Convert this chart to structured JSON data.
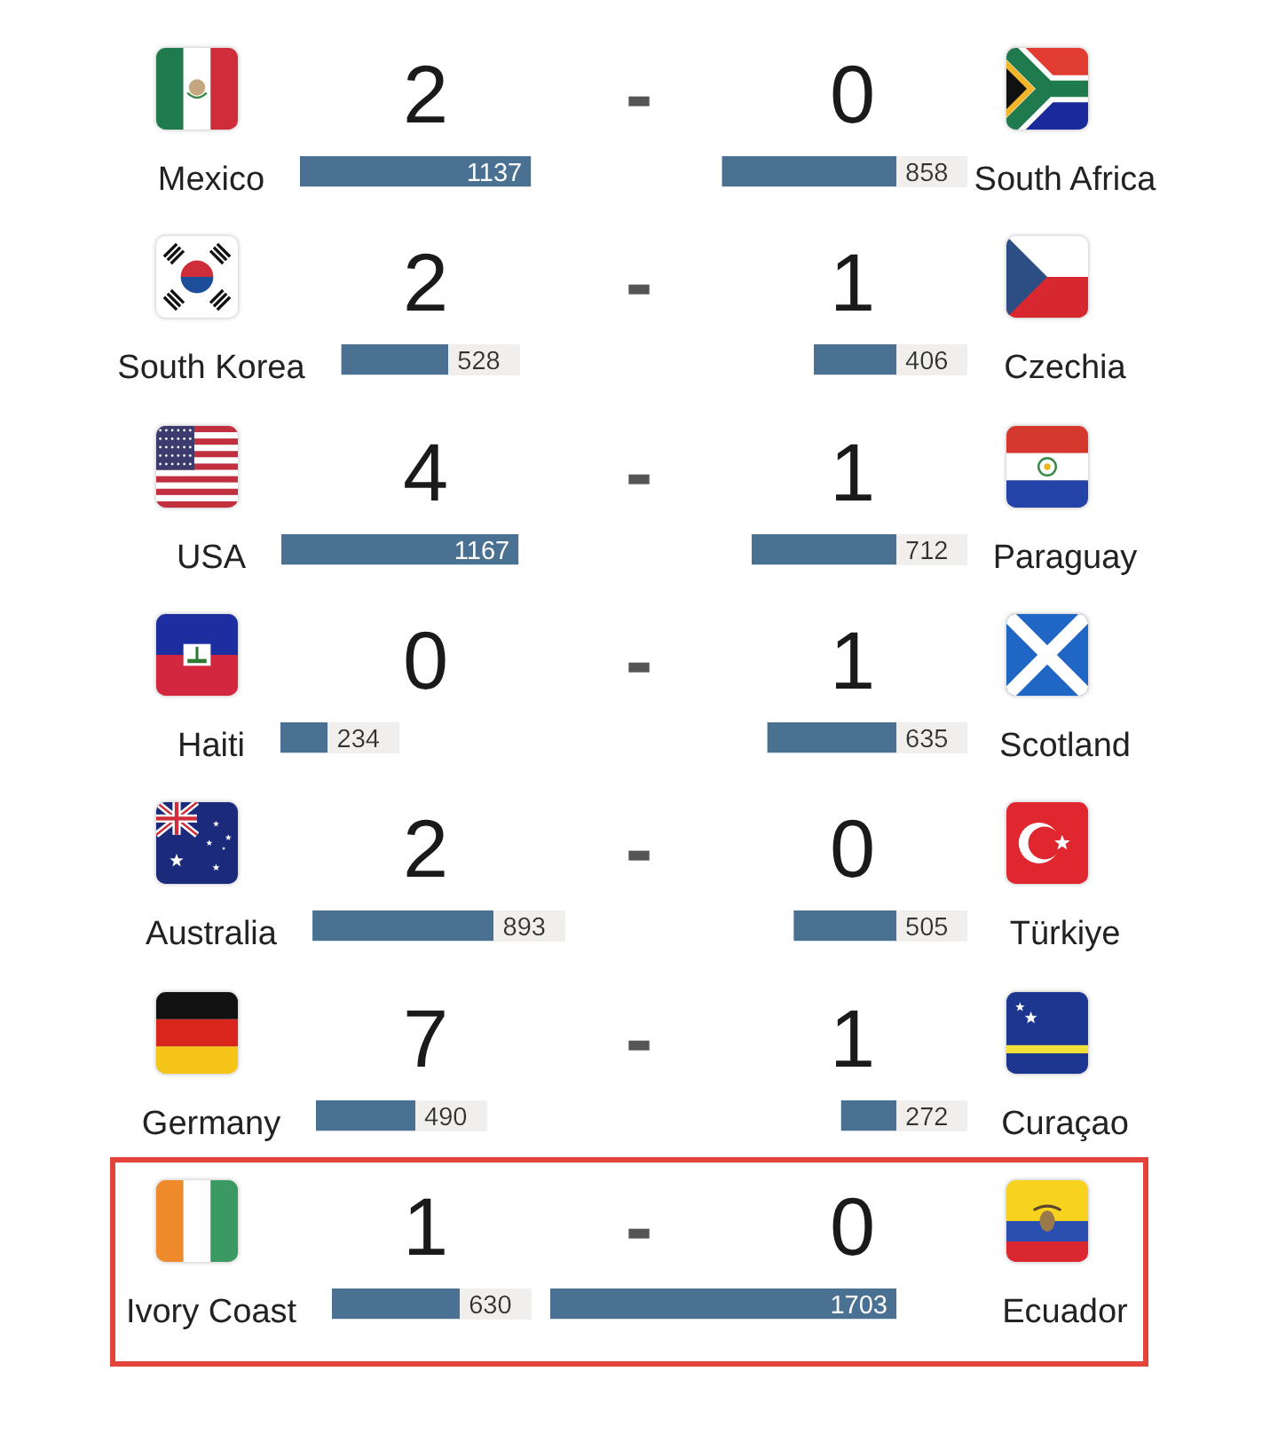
{
  "chart_data": [
    {
      "type": "bar",
      "orientation": "horizontal",
      "categories": [
        "Mexico"
      ],
      "values": [
        1137
      ],
      "color": "#4b7192",
      "data_labels": true
    },
    {
      "type": "other",
      "title": "2 - 0"
    },
    {
      "type": "bar",
      "orientation": "horizontal",
      "categories": [
        "South Africa"
      ],
      "values": [
        858
      ],
      "color": "#4b7192",
      "data_labels": true
    },
    {
      "type": "bar",
      "orientation": "horizontal",
      "categories": [
        "South Korea"
      ],
      "values": [
        528
      ],
      "color": "#4b7192",
      "data_labels": true
    },
    {
      "type": "other",
      "title": "2 - 1"
    },
    {
      "type": "bar",
      "orientation": "horizontal",
      "categories": [
        "Czechia"
      ],
      "values": [
        406
      ],
      "color": "#4b7192",
      "data_labels": true
    },
    {
      "type": "bar",
      "orientation": "horizontal",
      "categories": [
        "USA"
      ],
      "values": [
        1167
      ],
      "color": "#4b7192",
      "data_labels": true
    },
    {
      "type": "other",
      "title": "4 - 1"
    },
    {
      "type": "bar",
      "orientation": "horizontal",
      "categories": [
        "Paraguay"
      ],
      "values": [
        712
      ],
      "color": "#4b7192",
      "data_labels": true
    },
    {
      "type": "bar",
      "orientation": "horizontal",
      "categories": [
        "Haiti"
      ],
      "values": [
        234
      ],
      "color": "#4b7192",
      "data_labels": true
    },
    {
      "type": "other",
      "title": "0 - 1"
    },
    {
      "type": "bar",
      "orientation": "horizontal",
      "categories": [
        "Scotland"
      ],
      "values": [
        635
      ],
      "color": "#4b7192",
      "data_labels": true
    },
    {
      "type": "bar",
      "orientation": "horizontal",
      "categories": [
        "Australia"
      ],
      "values": [
        893
      ],
      "color": "#4b7192",
      "data_labels": true
    },
    {
      "type": "other",
      "title": "2 - 0"
    },
    {
      "type": "bar",
      "orientation": "horizontal",
      "categories": [
        "Türkiye"
      ],
      "values": [
        505
      ],
      "color": "#4b7192",
      "data_labels": true
    },
    {
      "type": "bar",
      "orientation": "horizontal",
      "categories": [
        "Germany"
      ],
      "values": [
        490
      ],
      "color": "#4b7192",
      "data_labels": true
    },
    {
      "type": "other",
      "title": "7 - 1"
    },
    {
      "type": "bar",
      "orientation": "horizontal",
      "categories": [
        "Curaçao"
      ],
      "values": [
        272
      ],
      "color": "#4b7192",
      "data_labels": true
    },
    {
      "type": "bar",
      "orientation": "horizontal",
      "categories": [
        "Ivory Coast"
      ],
      "values": [
        630
      ],
      "color": "#4b7192",
      "data_labels": true
    },
    {
      "type": "other",
      "title": "1 - 0"
    },
    {
      "type": "bar",
      "orientation": "horizontal",
      "categories": [
        "Ecuador"
      ],
      "values": [
        1703
      ],
      "color": "#4b7192",
      "data_labels": true
    }
  ]
}
